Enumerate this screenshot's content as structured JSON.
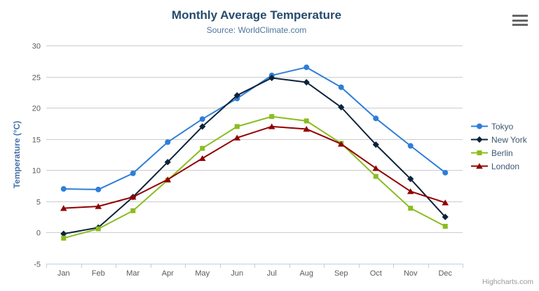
{
  "chart": {
    "title": "Monthly Average Temperature",
    "subtitle": "Source: WorldClimate.com",
    "credits": "Highcharts.com"
  },
  "chart_data": {
    "type": "line",
    "title": "Monthly Average Temperature",
    "subtitle": "Source: WorldClimate.com",
    "categories": [
      "Jan",
      "Feb",
      "Mar",
      "Apr",
      "May",
      "Jun",
      "Jul",
      "Aug",
      "Sep",
      "Oct",
      "Nov",
      "Dec"
    ],
    "series": [
      {
        "name": "Tokyo",
        "color": "#2f7ed8",
        "marker": "circle",
        "values": [
          7.0,
          6.9,
          9.5,
          14.5,
          18.2,
          21.5,
          25.2,
          26.5,
          23.3,
          18.3,
          13.9,
          9.6
        ]
      },
      {
        "name": "New York",
        "color": "#0d233a",
        "marker": "diamond",
        "values": [
          -0.2,
          0.8,
          5.7,
          11.3,
          17.0,
          22.0,
          24.8,
          24.1,
          20.1,
          14.1,
          8.6,
          2.5
        ]
      },
      {
        "name": "Berlin",
        "color": "#8bbc21",
        "marker": "square",
        "values": [
          -0.9,
          0.6,
          3.5,
          8.4,
          13.5,
          17.0,
          18.6,
          17.9,
          14.3,
          9.0,
          3.9,
          1.0
        ]
      },
      {
        "name": "London",
        "color": "#910000",
        "marker": "triangle",
        "values": [
          3.9,
          4.2,
          5.7,
          8.5,
          11.9,
          15.2,
          17.0,
          16.6,
          14.2,
          10.3,
          6.6,
          4.8
        ]
      }
    ],
    "xlabel": "",
    "ylabel": "Temperature (°C)",
    "ylim": [
      -5,
      30
    ],
    "ytick_step": 5,
    "grid": true,
    "legend_position": "right"
  },
  "style_colors": {
    "title": "#274b6d",
    "subtitle": "#4d759e",
    "axis_title": "#4572a7",
    "axis_labels": "#5a5a5a",
    "gridline": "#cccccc",
    "axis_line": "#c0d0e0",
    "legend_text": "#3e576f",
    "credits_text": "#999999",
    "menu_icon": "#666666",
    "background": "#ffffff"
  }
}
